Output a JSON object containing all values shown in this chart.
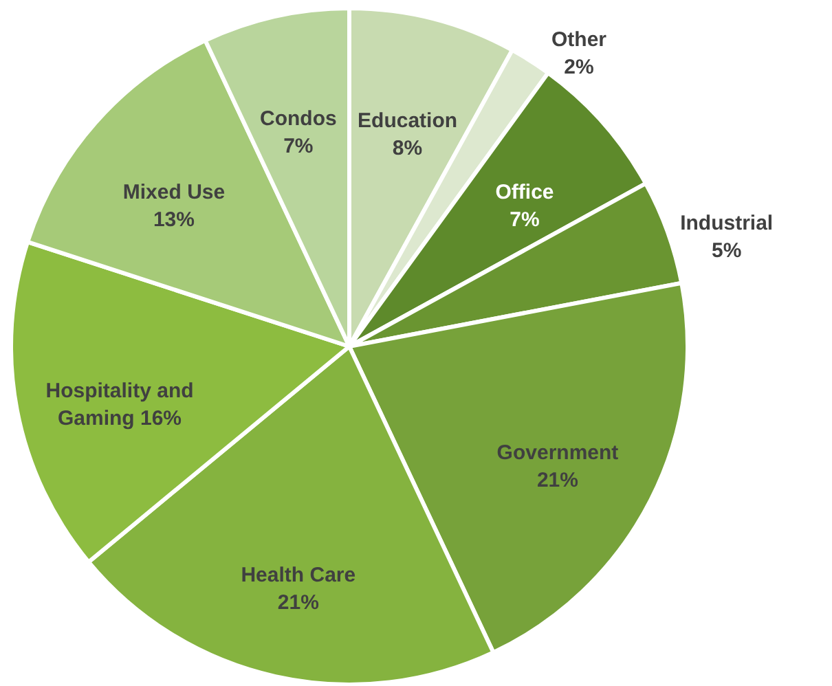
{
  "chart_data": {
    "type": "pie",
    "categories": [
      "Education",
      "Other",
      "Office",
      "Industrial",
      "Government",
      "Health Care",
      "Hospitality and Gaming",
      "Mixed Use",
      "Condos"
    ],
    "values": [
      8,
      2,
      7,
      5,
      21,
      21,
      16,
      13,
      7
    ],
    "value_labels": [
      "8%",
      "2%",
      "7%",
      "5%",
      "21%",
      "21%",
      "16%",
      "13%",
      "7%"
    ],
    "colors": [
      "#c8dbb0",
      "#dde8cf",
      "#5e8a2b",
      "#6a9531",
      "#77a23a",
      "#85b33f",
      "#8dbc40",
      "#a6ca78",
      "#b9d59c"
    ]
  }
}
